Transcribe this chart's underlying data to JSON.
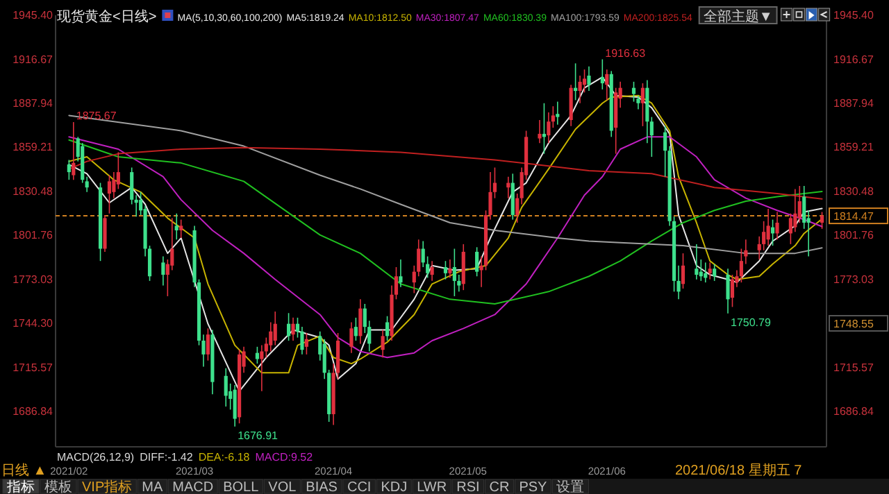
{
  "chart_data": {
    "type": "candlestick",
    "title": "现货黄金<日线>",
    "legend": "top",
    "x": [
      "2021-02-01",
      "2021-02-02",
      "2021-02-03",
      "2021-02-04",
      "2021-02-05",
      "2021-02-08",
      "2021-02-09",
      "2021-02-10",
      "2021-02-11",
      "2021-02-12",
      "2021-02-15",
      "2021-02-16",
      "2021-02-17",
      "2021-02-18",
      "2021-02-19",
      "2021-02-22",
      "2021-02-23",
      "2021-02-24",
      "2021-02-25",
      "2021-02-26",
      "2021-03-01",
      "2021-03-02",
      "2021-03-03",
      "2021-03-04",
      "2021-03-05",
      "2021-03-08",
      "2021-03-09",
      "2021-03-10",
      "2021-03-11",
      "2021-03-12",
      "2021-03-15",
      "2021-03-16",
      "2021-03-17",
      "2021-03-18",
      "2021-03-19",
      "2021-03-22",
      "2021-03-23",
      "2021-03-24",
      "2021-03-25",
      "2021-03-26",
      "2021-03-29",
      "2021-03-30",
      "2021-03-31",
      "2021-04-01",
      "2021-04-02",
      "2021-04-05",
      "2021-04-06",
      "2021-04-07",
      "2021-04-08",
      "2021-04-09",
      "2021-04-12",
      "2021-04-13",
      "2021-04-14",
      "2021-04-15",
      "2021-04-16",
      "2021-04-19",
      "2021-04-20",
      "2021-04-21",
      "2021-04-22",
      "2021-04-23",
      "2021-04-26",
      "2021-04-27",
      "2021-04-28",
      "2021-04-29",
      "2021-04-30",
      "2021-05-03",
      "2021-05-04",
      "2021-05-05",
      "2021-05-06",
      "2021-05-07",
      "2021-05-10",
      "2021-05-11",
      "2021-05-12",
      "2021-05-13",
      "2021-05-14",
      "2021-05-17",
      "2021-05-18",
      "2021-05-19",
      "2021-05-20",
      "2021-05-21",
      "2021-05-24",
      "2021-05-25",
      "2021-05-26",
      "2021-05-27",
      "2021-05-28",
      "2021-05-31",
      "2021-06-01",
      "2021-06-02",
      "2021-06-03",
      "2021-06-04",
      "2021-06-07",
      "2021-06-08",
      "2021-06-09",
      "2021-06-10",
      "2021-06-11",
      "2021-06-14",
      "2021-06-15",
      "2021-06-16",
      "2021-06-17",
      "2021-06-18",
      "2021-06-21",
      "2021-06-22",
      "2021-06-23",
      "2021-06-24",
      "2021-06-25",
      "2021-06-28",
      "2021-06-29",
      "2021-06-30",
      "2021-07-01",
      "2021-07-02",
      "2021-07-05",
      "2021-07-06",
      "2021-07-07",
      "2021-07-08",
      "2021-07-09",
      "2021-07-12",
      "2021-07-13",
      "2021-07-14",
      "2021-07-15",
      "2021-07-16",
      "2021-07-19"
    ],
    "ohlc": [
      [
        1848,
        1851,
        1838,
        1843
      ],
      [
        1841,
        1875.67,
        1838,
        1849
      ],
      [
        1865,
        1866,
        1850,
        1853
      ],
      [
        1860,
        1862,
        1836,
        1838
      ],
      [
        1837,
        1840,
        1830,
        1833
      ],
      [
        1833,
        1836,
        1785,
        1793
      ],
      [
        1793,
        1815,
        1791,
        1813
      ],
      [
        1829,
        1841,
        1816,
        1837
      ],
      [
        1830,
        1843,
        1826,
        1838
      ],
      [
        1835,
        1856,
        1832,
        1843
      ],
      [
        1843,
        1846,
        1822,
        1825
      ],
      [
        1825,
        1828,
        1814,
        1823
      ],
      [
        1825,
        1830,
        1815,
        1818
      ],
      [
        1819,
        1821,
        1788,
        1793
      ],
      [
        1793,
        1795,
        1772,
        1775
      ],
      [
        1784,
        1788,
        1769,
        1776
      ],
      [
        1776,
        1786,
        1762,
        1783
      ],
      [
        1782,
        1813,
        1779,
        1793
      ],
      [
        1808,
        1816,
        1799,
        1805
      ],
      [
        1805,
        1812,
        1800,
        1808
      ],
      [
        1805,
        1808,
        1768,
        1771
      ],
      [
        1771,
        1773,
        1730,
        1733
      ],
      [
        1733,
        1737,
        1716,
        1724
      ],
      [
        1724,
        1741,
        1720,
        1737
      ],
      [
        1737,
        1740,
        1698,
        1706
      ],
      [
        1710,
        1715,
        1690,
        1697
      ],
      [
        1700,
        1705,
        1688,
        1695
      ],
      [
        1701,
        1704,
        1676.91,
        1682
      ],
      [
        1683,
        1727,
        1679,
        1724
      ],
      [
        1716,
        1729,
        1712,
        1726
      ],
      [
        1725,
        1729,
        1718,
        1721
      ],
      [
        1721,
        1730,
        1700,
        1726
      ],
      [
        1726,
        1735,
        1722,
        1731
      ],
      [
        1730,
        1745,
        1726,
        1739
      ],
      [
        1733,
        1752,
        1730,
        1744
      ],
      [
        1744,
        1751,
        1733,
        1736
      ],
      [
        1737,
        1748,
        1733,
        1744
      ],
      [
        1744,
        1748,
        1735,
        1739
      ],
      [
        1739,
        1742,
        1724,
        1727
      ],
      [
        1729,
        1738,
        1724,
        1734
      ],
      [
        1736,
        1739,
        1720,
        1724
      ],
      [
        1731,
        1734,
        1708,
        1712
      ],
      [
        1712,
        1714,
        1680,
        1685
      ],
      [
        1685,
        1718,
        1678,
        1712
      ],
      [
        1712,
        1738,
        1708,
        1733
      ],
      [
        1729,
        1745,
        1725,
        1741
      ],
      [
        1742,
        1748,
        1733,
        1736
      ],
      [
        1736,
        1760,
        1731,
        1754
      ],
      [
        1754,
        1757,
        1738,
        1742
      ],
      [
        1742,
        1746,
        1726,
        1731
      ],
      [
        1727,
        1740,
        1722,
        1736
      ],
      [
        1745,
        1749,
        1733,
        1736
      ],
      [
        1736,
        1769,
        1733,
        1763
      ],
      [
        1763,
        1781,
        1760,
        1775
      ],
      [
        1775,
        1786,
        1768,
        1771
      ],
      [
        1771,
        1782,
        1764,
        1778
      ],
      [
        1778,
        1799,
        1775,
        1793
      ],
      [
        1793,
        1798,
        1781,
        1784
      ],
      [
        1783,
        1788,
        1774,
        1777
      ],
      [
        1776,
        1785,
        1772,
        1781
      ],
      [
        1781,
        1785,
        1773,
        1777
      ],
      [
        1777,
        1786,
        1774,
        1780
      ],
      [
        1781,
        1793,
        1762,
        1772
      ],
      [
        1772,
        1776,
        1765,
        1769
      ],
      [
        1770,
        1796,
        1766,
        1791
      ],
      [
        1791,
        1794,
        1775,
        1778
      ],
      [
        1779,
        1788,
        1768,
        1782
      ],
      [
        1782,
        1818,
        1779,
        1815
      ],
      [
        1815,
        1843,
        1812,
        1830
      ],
      [
        1830,
        1846,
        1826,
        1836
      ],
      [
        1833,
        1840,
        1826,
        1836
      ],
      [
        1836,
        1842,
        1812,
        1815
      ],
      [
        1815,
        1829,
        1810,
        1826
      ],
      [
        1826,
        1846,
        1822,
        1843
      ],
      [
        1841,
        1870,
        1838,
        1866
      ],
      [
        1865,
        1877,
        1862,
        1868
      ],
      [
        1868,
        1888,
        1855,
        1866
      ],
      [
        1867,
        1882,
        1862,
        1876
      ],
      [
        1876,
        1886,
        1872,
        1880
      ],
      [
        1881,
        1889,
        1874,
        1879
      ],
      [
        1877,
        1900,
        1873,
        1898
      ],
      [
        1898,
        1914,
        1890,
        1896
      ],
      [
        1896,
        1906,
        1888,
        1902
      ],
      [
        1900,
        1910,
        1895,
        1904
      ],
      [
        1906,
        1912,
        1896,
        1900
      ],
      [
        1905,
        1916.63,
        1897,
        1901
      ],
      [
        1900,
        1910,
        1890,
        1907
      ],
      [
        1907,
        1909,
        1866,
        1870
      ],
      [
        1872,
        1898,
        1855,
        1895
      ],
      [
        1891,
        1902,
        1885,
        1898
      ],
      [
        1898,
        1902,
        1889,
        1894
      ],
      [
        1891,
        1893,
        1884,
        1888
      ],
      [
        1888,
        1901,
        1873,
        1898
      ],
      [
        1898,
        1903,
        1862,
        1876
      ],
      [
        1876,
        1879,
        1853,
        1867
      ],
      [
        1869,
        1873,
        1840,
        1857
      ],
      [
        1857,
        1860,
        1808,
        1811
      ],
      [
        1811,
        1814,
        1765,
        1772
      ],
      [
        1772,
        1782,
        1760,
        1765
      ],
      [
        1770,
        1790,
        1767,
        1782
      ],
      [
        1780,
        1796,
        1773,
        1776
      ],
      [
        1778,
        1786,
        1772,
        1775
      ],
      [
        1777,
        1784,
        1771,
        1774
      ],
      [
        1777,
        1784,
        1773,
        1780
      ],
      [
        1780,
        1783,
        1772,
        1775
      ],
      [
        1776,
        1780,
        1750.79,
        1760
      ],
      [
        1761,
        1776,
        1755,
        1773
      ],
      [
        1771,
        1779,
        1768,
        1775
      ],
      [
        1775,
        1793,
        1771,
        1785
      ],
      [
        1788,
        1799,
        1783,
        1792
      ],
      [
        1792,
        1801,
        1786,
        1796
      ],
      [
        1796,
        1811,
        1792,
        1804
      ],
      [
        1799,
        1819,
        1795,
        1808
      ],
      [
        1807,
        1812,
        1795,
        1803
      ],
      [
        1803,
        1817,
        1799,
        1810
      ],
      [
        1803,
        1816,
        1796,
        1813
      ],
      [
        1807,
        1832,
        1804,
        1816
      ],
      [
        1813,
        1834,
        1810,
        1824
      ],
      [
        1827,
        1834,
        1806,
        1810
      ],
      [
        1813,
        1818,
        1788,
        1810
      ],
      [
        1810,
        1817,
        1806,
        1814.47
      ]
    ],
    "series": [
      {
        "type": "line",
        "name": "MA5:1819.24",
        "color": "#e6e6e6",
        "x": [
          "2021-02-01",
          "2021-02-05",
          "2021-02-10",
          "2021-02-15",
          "2021-02-18",
          "2021-02-23",
          "2021-02-26",
          "2021-03-04",
          "2021-03-11",
          "2021-03-17",
          "2021-03-23",
          "2021-03-29",
          "2021-03-31",
          "2021-04-02",
          "2021-04-06",
          "2021-04-09",
          "2021-04-14",
          "2021-04-19",
          "2021-04-23",
          "2021-04-28",
          "2021-05-03",
          "2021-05-06",
          "2021-05-11",
          "2021-05-14",
          "2021-05-19",
          "2021-05-24",
          "2021-05-27",
          "2021-05-31",
          "2021-06-03",
          "2021-06-08",
          "2021-06-11",
          "2021-06-15",
          "2021-06-17",
          "2021-06-21",
          "2021-06-24",
          "2021-06-28",
          "2021-06-30",
          "2021-07-05",
          "2021-07-08",
          "2021-07-13",
          "2021-07-15",
          "2021-07-19"
        ],
        "values": [
          1848,
          1842,
          1823,
          1833,
          1822,
          1790,
          1800,
          1744,
          1700,
          1722,
          1740,
          1735,
          1730,
          1708,
          1718,
          1740,
          1740,
          1760,
          1782,
          1779,
          1780,
          1800,
          1830,
          1836,
          1862,
          1880,
          1898,
          1905,
          1893,
          1892,
          1885,
          1868,
          1815,
          1782,
          1776,
          1773,
          1771,
          1785,
          1798,
          1808,
          1817,
          1819.24
        ]
      },
      {
        "type": "line",
        "name": "MA10:1812.50",
        "color": "#c8b400",
        "x": [
          "2021-02-01",
          "2021-02-05",
          "2021-02-11",
          "2021-02-17",
          "2021-02-23",
          "2021-03-01",
          "2021-03-04",
          "2021-03-10",
          "2021-03-16",
          "2021-03-22",
          "2021-03-24",
          "2021-03-29",
          "2021-04-01",
          "2021-04-05",
          "2021-04-07",
          "2021-04-13",
          "2021-04-19",
          "2021-04-23",
          "2021-04-29",
          "2021-05-05",
          "2021-05-10",
          "2021-05-13",
          "2021-05-19",
          "2021-05-25",
          "2021-05-31",
          "2021-06-02",
          "2021-06-08",
          "2021-06-11",
          "2021-06-15",
          "2021-06-17",
          "2021-06-21",
          "2021-06-24",
          "2021-06-28",
          "2021-06-30",
          "2021-07-05",
          "2021-07-08",
          "2021-07-13",
          "2021-07-15",
          "2021-07-19"
        ],
        "values": [
          1850,
          1853,
          1838,
          1830,
          1813,
          1800,
          1770,
          1730,
          1712,
          1712,
          1730,
          1736,
          1722,
          1718,
          1721,
          1732,
          1750,
          1770,
          1778,
          1782,
          1800,
          1820,
          1845,
          1871,
          1888,
          1892,
          1893,
          1888,
          1870,
          1840,
          1810,
          1785,
          1776,
          1773,
          1775,
          1783,
          1795,
          1803,
          1812.5
        ]
      },
      {
        "type": "line",
        "name": "MA30:1807.47",
        "color": "#c020c0",
        "x": [
          "2021-02-01",
          "2021-02-12",
          "2021-02-22",
          "2021-02-26",
          "2021-03-05",
          "2021-03-12",
          "2021-03-19",
          "2021-03-29",
          "2021-04-02",
          "2021-04-07",
          "2021-04-13",
          "2021-04-19",
          "2021-04-23",
          "2021-04-30",
          "2021-05-07",
          "2021-05-14",
          "2021-05-21",
          "2021-05-27",
          "2021-05-31",
          "2021-06-04",
          "2021-06-10",
          "2021-06-15",
          "2021-06-21",
          "2021-06-25",
          "2021-07-02",
          "2021-07-09",
          "2021-07-15",
          "2021-07-19"
        ],
        "values": [
          1866,
          1858,
          1840,
          1825,
          1805,
          1790,
          1773,
          1750,
          1735,
          1726,
          1722,
          1725,
          1733,
          1741,
          1750,
          1770,
          1800,
          1828,
          1840,
          1858,
          1866,
          1866,
          1853,
          1838,
          1826,
          1818,
          1812,
          1807.47
        ]
      },
      {
        "type": "line",
        "name": "MA60:1830.39",
        "color": "#20c020",
        "x": [
          "2021-02-01",
          "2021-02-12",
          "2021-02-26",
          "2021-03-12",
          "2021-03-29",
          "2021-04-07",
          "2021-04-16",
          "2021-04-27",
          "2021-05-07",
          "2021-05-19",
          "2021-05-28",
          "2021-06-04",
          "2021-06-11",
          "2021-06-18",
          "2021-06-25",
          "2021-07-02",
          "2021-07-09",
          "2021-07-19"
        ],
        "values": [
          1864,
          1853,
          1849,
          1837,
          1802,
          1790,
          1770,
          1760,
          1757,
          1765,
          1775,
          1785,
          1798,
          1810,
          1818,
          1824,
          1827,
          1830.39
        ]
      },
      {
        "type": "line",
        "name": "MA100:1793.59",
        "color": "#a0a0a0",
        "x": [
          "2021-02-01",
          "2021-02-26",
          "2021-03-12",
          "2021-03-29",
          "2021-04-07",
          "2021-04-16",
          "2021-04-27",
          "2021-05-07",
          "2021-05-21",
          "2021-05-28",
          "2021-06-04",
          "2021-06-18",
          "2021-07-02",
          "2021-07-13",
          "2021-07-19"
        ],
        "values": [
          1880,
          1870,
          1860,
          1841,
          1832,
          1822,
          1810,
          1805,
          1800,
          1798,
          1797,
          1795,
          1790,
          1790,
          1793.59
        ]
      },
      {
        "type": "line",
        "name": "MA200:1825.54",
        "color": "#c02020",
        "x": [
          "2021-02-01",
          "2021-02-05",
          "2021-02-12",
          "2021-02-26",
          "2021-03-12",
          "2021-03-29",
          "2021-04-16",
          "2021-05-07",
          "2021-05-28",
          "2021-06-11",
          "2021-06-25",
          "2021-07-09",
          "2021-07-19"
        ],
        "values": [
          1845,
          1850,
          1855,
          1858,
          1859,
          1858,
          1856,
          1851,
          1844,
          1842,
          1833,
          1829,
          1825.54
        ]
      }
    ],
    "xlim": [
      "2021-01-29",
      "2021-07-20"
    ],
    "xticks": [
      {
        "value": "2021-02",
        "label": "2021/02"
      },
      {
        "value": "2021-03",
        "label": "2021/03"
      },
      {
        "value": "2021-04",
        "label": "2021/04"
      },
      {
        "value": "2021-05",
        "label": "2021/05"
      },
      {
        "value": "2021-06",
        "label": "2021/06"
      }
    ],
    "ylim": [
      1663.7,
      1945.4
    ],
    "yticks": [
      {
        "value": 1945.4,
        "label": "1945.40"
      },
      1916.67,
      1887.94,
      1859.21,
      1830.48,
      1801.76,
      1773.03,
      {
        "value": 1744.3,
        "label": "1744.30"
      },
      1715.57,
      1686.84
    ],
    "y2lim": [
      1663.7,
      1945.4
    ],
    "y2ticks": [
      {
        "value": 1945.4,
        "label": "1945.40"
      },
      1916.67,
      1887.94,
      1859.21,
      1830.48,
      1801.76,
      1773.03,
      1715.57,
      1686.84
    ],
    "ref_lines": [
      {
        "axis": "y",
        "value": 1814.47,
        "label": "1814.47",
        "color": "#d08020",
        "line_style": "dashed"
      }
    ],
    "annotations": [
      "MA(5,10,30,60,100,200)",
      "MACD(26,12,9)",
      "DIFF:-1.42",
      "DEA:-6.18",
      "MACD:9.52",
      "日线 ▲",
      "2021/06/18 星期五 7",
      "全部主题▼",
      "指标",
      "模板",
      "VIP指标",
      "MA",
      "MACD",
      "BOLL",
      "VOL",
      "BIAS",
      "CCI",
      "KDJ",
      "LWR",
      "RSI",
      "CR",
      "PSY",
      "设置",
      {
        "text": "1875.67",
        "x": "2021-02-02",
        "y": 1875.67
      },
      {
        "text": "1676.91",
        "x": "2021-03-10",
        "y": 1676.91
      },
      {
        "text": "1916.63",
        "x": "2021-05-31",
        "y": 1916.63
      },
      {
        "text": "1750.79",
        "x": "2021-06-28",
        "y": 1750.79
      },
      "1748.55"
    ]
  }
}
